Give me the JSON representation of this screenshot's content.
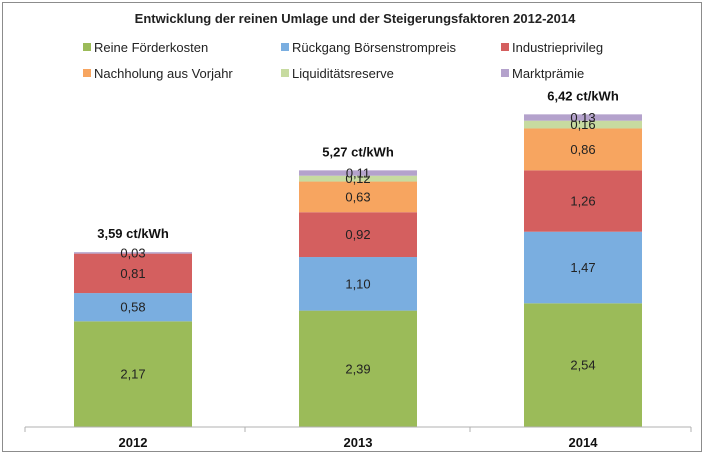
{
  "chart_data": {
    "type": "bar",
    "stacked": true,
    "title": "Entwicklung der reinen Umlage und der Steigerungsfaktoren 2012-2014",
    "categories": [
      "2012",
      "2013",
      "2014"
    ],
    "totals": [
      "3,59 ct/kWh",
      "5,27 ct/kWh",
      "6,42 ct/kWh"
    ],
    "series": [
      {
        "name": "Reine Förderkosten",
        "color": "#9bbb59",
        "values": [
          2.17,
          2.39,
          2.54
        ],
        "labels": [
          "2,17",
          "2,39",
          "2,54"
        ]
      },
      {
        "name": "Rückgang Börsenstrompreis",
        "color": "#7aaee0",
        "values": [
          0.58,
          1.1,
          1.47
        ],
        "labels": [
          "0,58",
          "1,10",
          "1,47"
        ]
      },
      {
        "name": "Industrieprivileg",
        "color": "#d45f5f",
        "values": [
          0.81,
          0.92,
          1.26
        ],
        "labels": [
          "0,81",
          "0,92",
          "1,26"
        ]
      },
      {
        "name": "Nachholung aus Vorjahr",
        "color": "#f7a560",
        "values": [
          0,
          0.63,
          0.86
        ],
        "labels": [
          "",
          "0,63",
          "0,86"
        ]
      },
      {
        "name": "Liquiditätsreserve",
        "color": "#c7dba0",
        "values": [
          0,
          0.12,
          0.16
        ],
        "labels": [
          "",
          "0,12",
          "0,16"
        ]
      },
      {
        "name": "Marktprämie",
        "color": "#b4a2cc",
        "values": [
          0.03,
          0.11,
          0.13
        ],
        "labels": [
          "0,03",
          "0,11",
          "0,13"
        ]
      }
    ],
    "ylim": [
      0,
      7
    ],
    "legend": "top",
    "grid": false,
    "axis_color": "#b0b0b0"
  }
}
